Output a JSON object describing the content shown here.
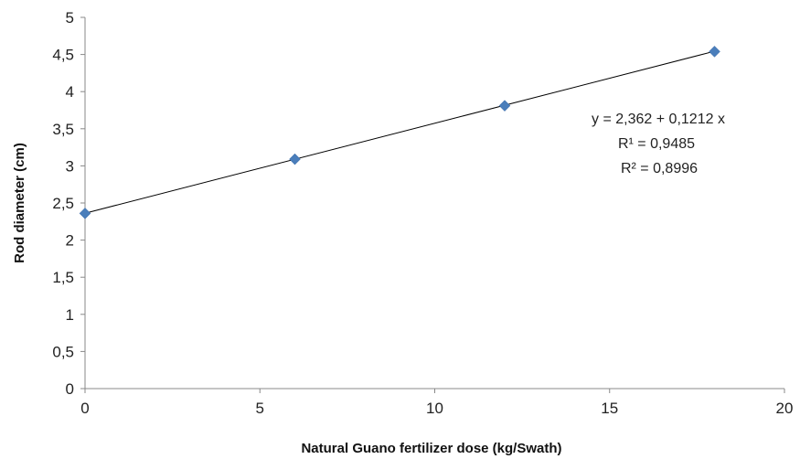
{
  "chart_data": {
    "type": "scatter",
    "x": [
      0,
      6,
      12,
      18
    ],
    "series": [
      {
        "values": [
          2.36,
          3.09,
          3.81,
          4.54
        ],
        "color": "#4a7ebb",
        "marker": "diamond"
      }
    ],
    "trendline": {
      "intercept": 2.362,
      "slope": 0.1212,
      "color": "#000000"
    },
    "xlabel": "Natural Guano fertilizer dose (kg/Swath)",
    "ylabel": "Rod diameter (cm)",
    "xlim": [
      0,
      20
    ],
    "ylim": [
      0,
      5
    ],
    "x_ticks": [
      "0",
      "5",
      "10",
      "15",
      "20"
    ],
    "y_ticks": [
      "0",
      "0,5",
      "1",
      "1,5",
      "2",
      "2,5",
      "3",
      "3,5",
      "4",
      "4,5",
      "5"
    ],
    "annotations": [
      "y = 2,362 + 0,1212 x",
      "R¹ = 0,9485",
      "R² = 0,8996"
    ],
    "grid": false
  }
}
